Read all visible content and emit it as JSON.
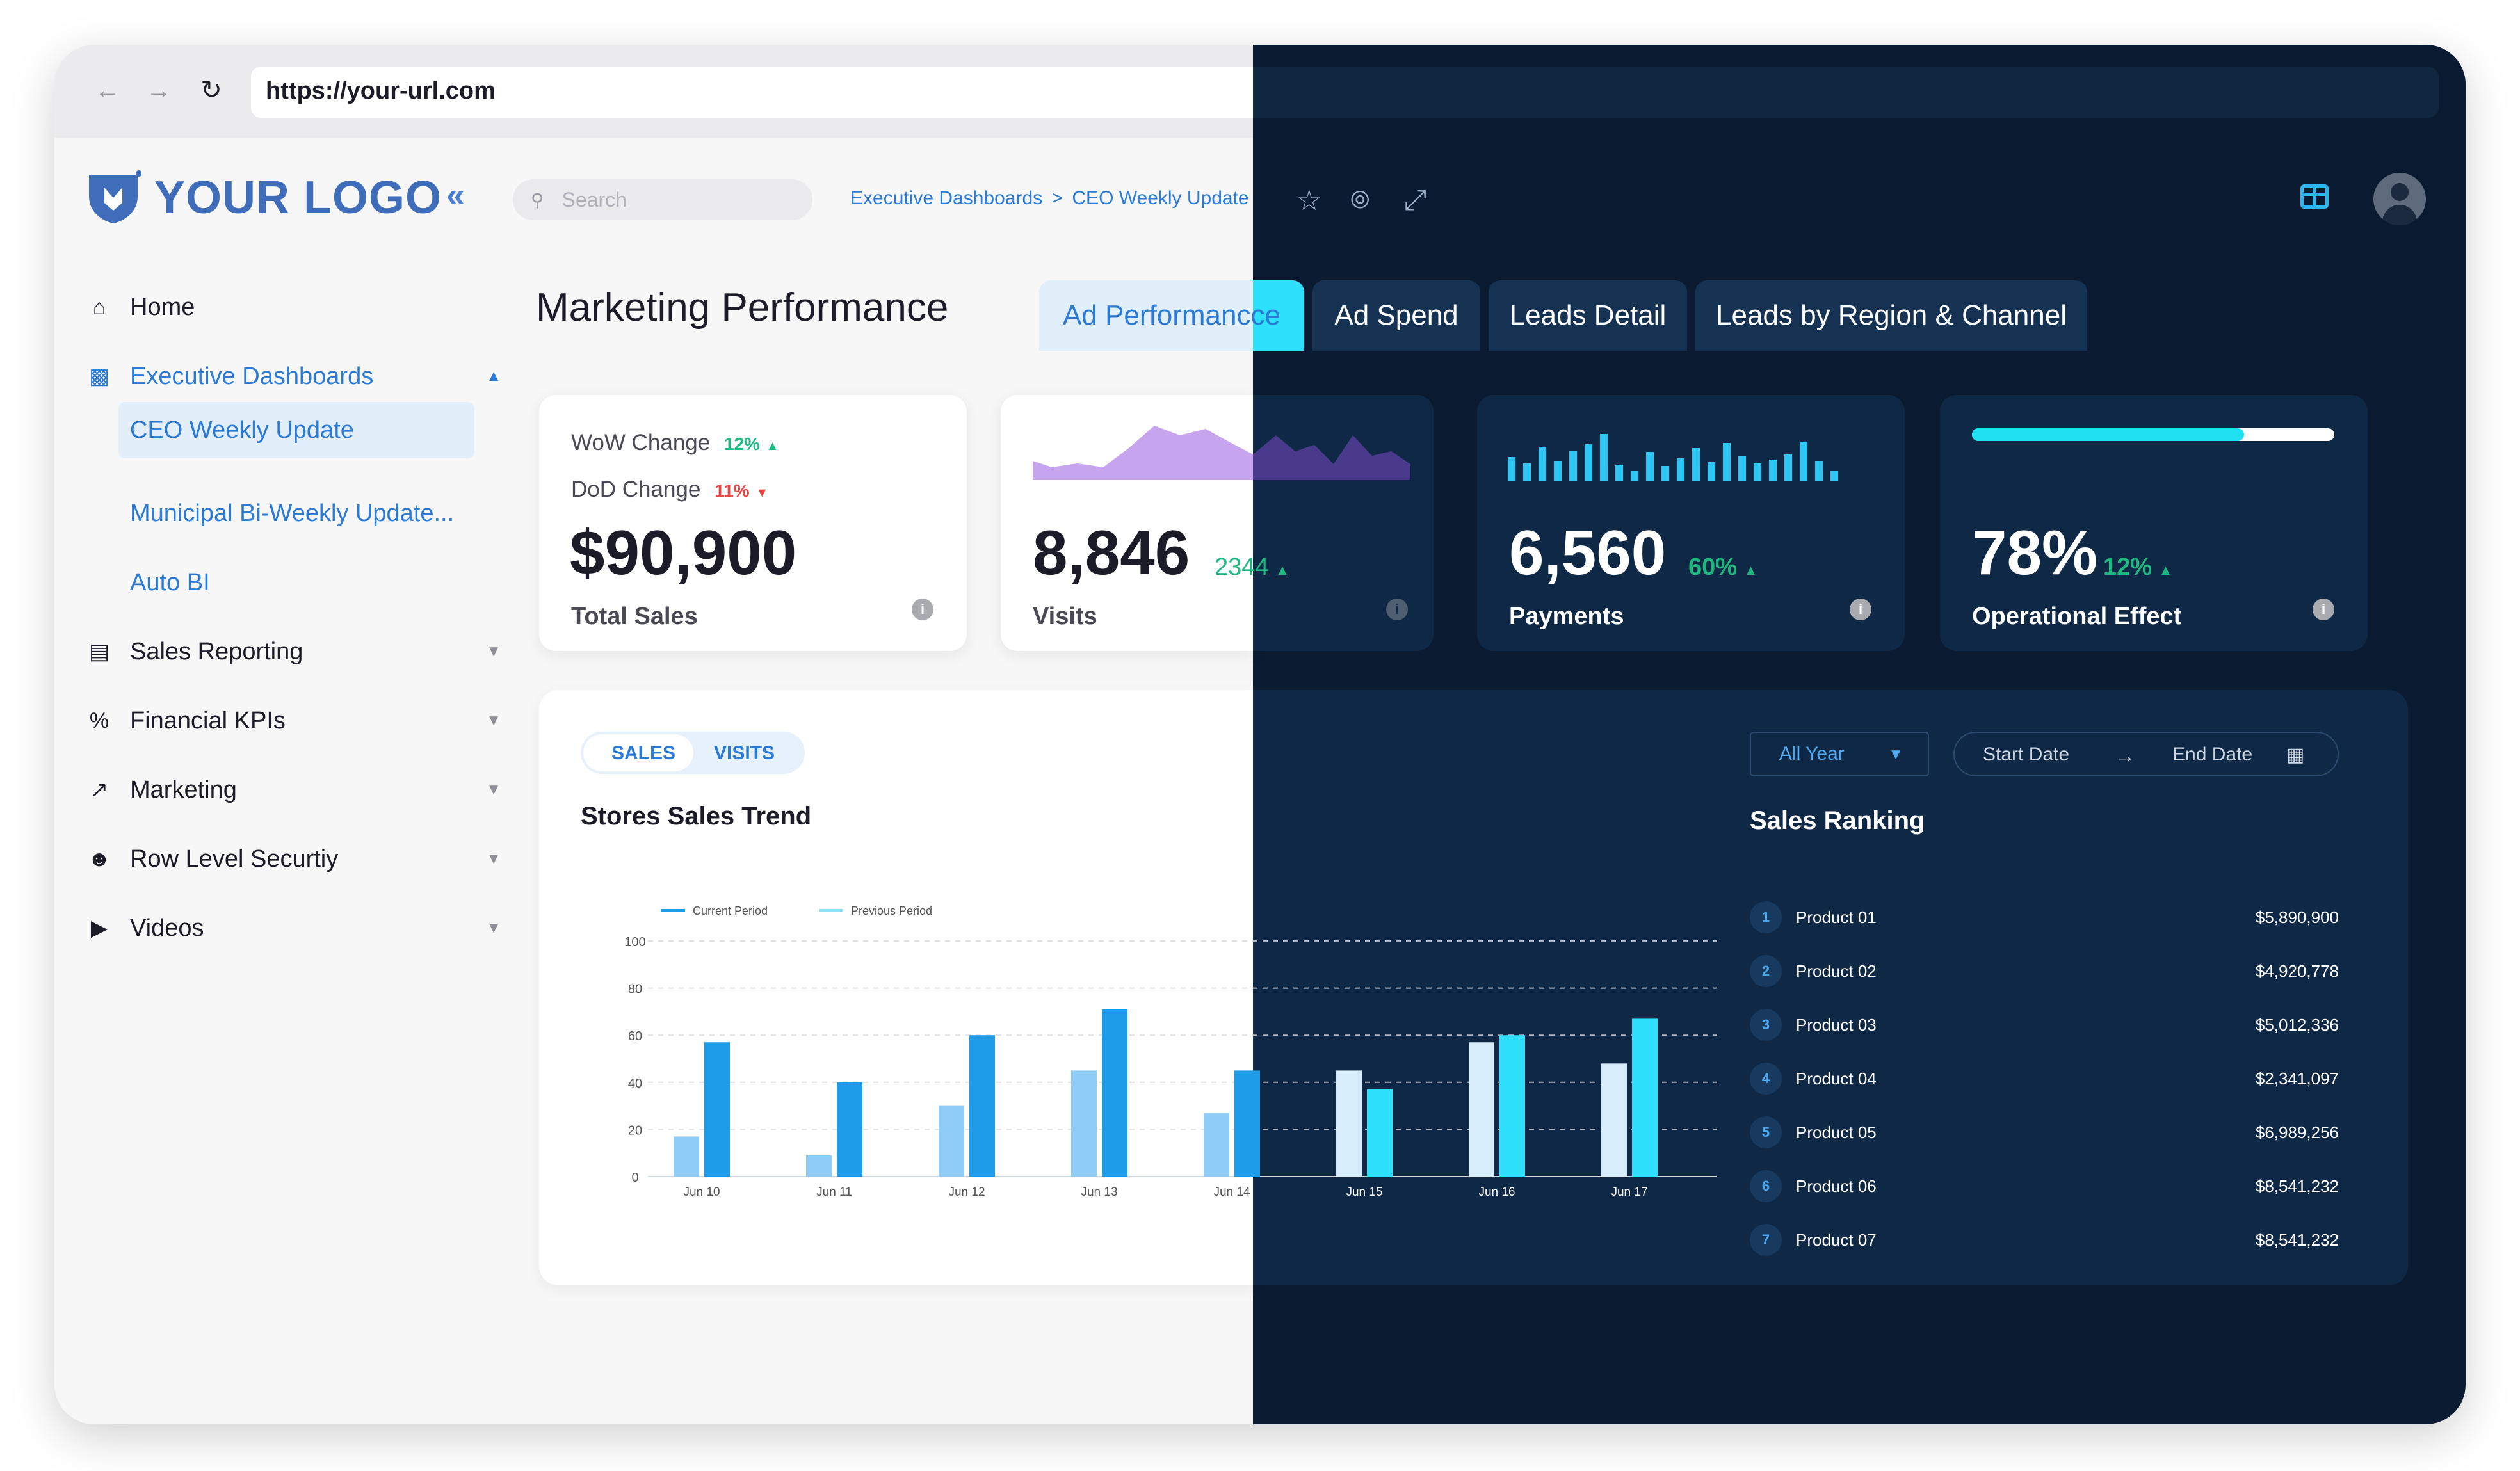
{
  "browser": {
    "url": "https://your-url.com"
  },
  "logo": {
    "text": "YOUR LOGO"
  },
  "sidebar": {
    "items": [
      {
        "label": "Home"
      },
      {
        "label": "Executive Dashboards"
      },
      {
        "label": "Sales Reporting"
      },
      {
        "label": "Financial KPIs"
      },
      {
        "label": "Marketing"
      },
      {
        "label": "Row Level Securtiy"
      },
      {
        "label": "Videos"
      }
    ],
    "subitems": [
      {
        "label": "CEO Weekly Update"
      },
      {
        "label": "Municipal Bi-Weekly Update..."
      },
      {
        "label": "Auto BI"
      }
    ]
  },
  "header": {
    "search_placeholder": "Search",
    "breadcrumb": [
      "Executive Dashboards",
      "CEO Weekly Update"
    ],
    "breadcrumb_sep": ">"
  },
  "page": {
    "title": "Marketing Performance",
    "tabs": [
      {
        "label": "Ad Performancce",
        "active": true
      },
      {
        "label": "Ad Spend"
      },
      {
        "label": "Leads Detail"
      },
      {
        "label": "Leads by Region & Channel"
      }
    ]
  },
  "kpi": {
    "sales": {
      "wow_label": "WoW Change",
      "wow_value": "12%",
      "dod_label": "DoD Change",
      "dod_value": "11%",
      "value": "$90,900",
      "label": "Total Sales"
    },
    "visits": {
      "value": "8,846",
      "change": "2344",
      "label": "Visits"
    },
    "payments": {
      "value": "6,560",
      "change": "60%",
      "label": "Payments"
    },
    "operational": {
      "value": "78%",
      "change": "12%",
      "label": "Operational Effect",
      "progress": 0.75
    }
  },
  "colors": {
    "accent": "#2a7ad6",
    "dark_bg": "#0a1a30",
    "card_dark": "#0f2846",
    "up": "#1fb980",
    "down": "#e84545",
    "bar_current": "#1e9be9",
    "bar_prev": "#8fcdf6",
    "cyan": "#2ee0fb"
  },
  "panel": {
    "toggle": [
      "SALES",
      "VISITS"
    ],
    "chart_title": "Stores Sales Trend",
    "filter_select": "All Year",
    "start_date": "Start Date",
    "end_date": "End Date",
    "ranking_title": "Sales Ranking",
    "ranking": [
      {
        "rank": "1",
        "name": "Product 01",
        "value": "$5,890,900"
      },
      {
        "rank": "2",
        "name": "Product 02",
        "value": "$4,920,778"
      },
      {
        "rank": "3",
        "name": "Product 03",
        "value": "$5,012,336"
      },
      {
        "rank": "4",
        "name": "Product 04",
        "value": "$2,341,097"
      },
      {
        "rank": "5",
        "name": "Product 05",
        "value": "$6,989,256"
      },
      {
        "rank": "6",
        "name": "Product 06",
        "value": "$8,541,232"
      },
      {
        "rank": "7",
        "name": "Product 07",
        "value": "$8,541,232"
      }
    ]
  },
  "chart_data": {
    "type": "bar",
    "categories": [
      "Jun 10",
      "Jun 11",
      "Jun 12",
      "Jun 13",
      "Jun 14",
      "Jun 15",
      "Jun 16",
      "Jun 17"
    ],
    "series": [
      {
        "name": "Current Period",
        "values": [
          57,
          40,
          60,
          71,
          45,
          37,
          60,
          67
        ]
      },
      {
        "name": "Previous Period",
        "values": [
          17,
          9,
          30,
          45,
          27,
          45,
          57,
          48
        ]
      }
    ],
    "ylim": [
      0,
      100
    ],
    "yticks": [
      "0",
      "20",
      "40",
      "60",
      "80",
      "100"
    ],
    "legend": "top-left",
    "grid": true
  }
}
